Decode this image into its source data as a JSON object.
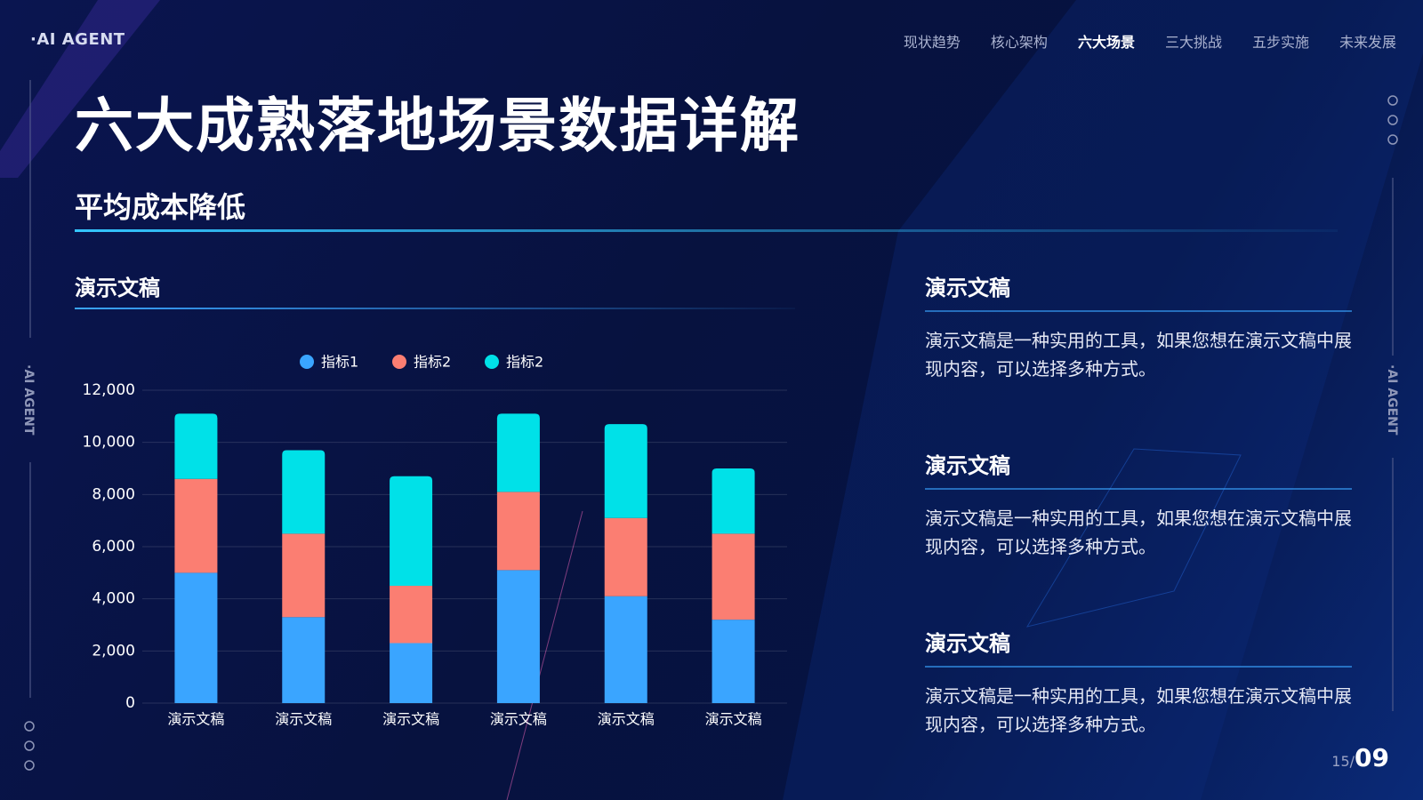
{
  "nav": {
    "logo": "·AI AGENT",
    "items": [
      "现状趋势",
      "核心架构",
      "六大场景",
      "三大挑战",
      "五步实施",
      "未来发展"
    ],
    "active": 2
  },
  "side_label": "·AI AGENT",
  "title": "六大成熟落地场景数据详解",
  "subtitle": "平均成本降低",
  "chart_heading": "演示文稿",
  "chart_data": {
    "type": "stacked-bar",
    "categories": [
      "演示文稿",
      "演示文稿",
      "演示文稿",
      "演示文稿",
      "演示文稿",
      "演示文稿"
    ],
    "series": [
      {
        "name": "指标1",
        "color": "#3aa5ff",
        "values": [
          5000,
          3300,
          2300,
          5100,
          4100,
          3200
        ]
      },
      {
        "name": "指标2",
        "color": "#fb7e72",
        "values": [
          3600,
          3200,
          2200,
          3000,
          3000,
          3300
        ]
      },
      {
        "name": "指标2",
        "color": "#00e1e8",
        "values": [
          2500,
          3200,
          4200,
          3000,
          3600,
          2500
        ]
      }
    ],
    "ylim": [
      0,
      12000
    ],
    "yticks": [
      0,
      {
        "value": 2000,
        "label": "2,000"
      },
      {
        "value": 4000,
        "label": "4,000"
      },
      {
        "value": 6000,
        "label": "6,000"
      },
      {
        "value": 8000,
        "label": "8,000"
      },
      {
        "value": 10000,
        "label": "10,000"
      },
      {
        "value": 12000,
        "label": "12,000"
      }
    ],
    "grid": true,
    "legend": "top"
  },
  "blocks": [
    {
      "heading": "演示文稿",
      "text": "演示文稿是一种实用的工具，如果您想在演示文稿中展现内容，可以选择多种方式。"
    },
    {
      "heading": "演示文稿",
      "text": "演示文稿是一种实用的工具，如果您想在演示文稿中展现内容，可以选择多种方式。"
    },
    {
      "heading": "演示文稿",
      "text": "演示文稿是一种实用的工具，如果您想在演示文稿中展现内容，可以选择多种方式。"
    }
  ],
  "page": {
    "current": "15/",
    "total": "09"
  }
}
